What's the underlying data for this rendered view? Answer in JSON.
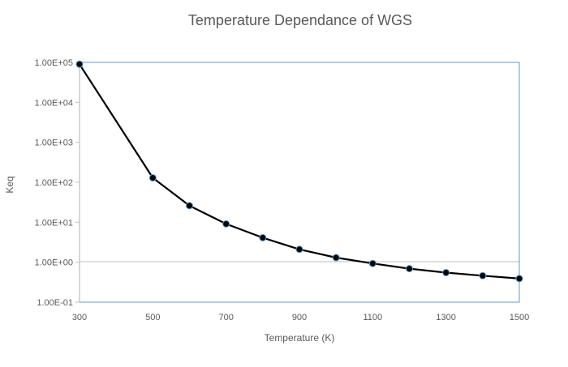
{
  "chart_data": {
    "type": "line",
    "title": "Temperature Dependance of WGS",
    "xlabel": "Temperature (K)",
    "ylabel": "Keq",
    "yscale": "log",
    "xlim": [
      300,
      1500
    ],
    "ylim": [
      0.1,
      100000
    ],
    "x_ticks": [
      "300",
      "500",
      "700",
      "900",
      "1100",
      "1300",
      "1500"
    ],
    "x_tick_values": [
      300,
      500,
      700,
      900,
      1100,
      1300,
      1500
    ],
    "y_ticks": [
      "1.00E+05",
      "1.00E+04",
      "1.00E+03",
      "1.00E+02",
      "1.00E+01",
      "1.00E+00",
      "1.00E-01"
    ],
    "y_tick_values": [
      100000,
      10000,
      1000,
      100,
      10,
      1,
      0.1
    ],
    "grid": "horizontal at 1.00E+00",
    "series": [
      {
        "name": "Keq",
        "color": "#000000",
        "marker_edge": "#5b9bd5",
        "x": [
          300,
          500,
          600,
          700,
          800,
          900,
          1000,
          1100,
          1200,
          1300,
          1400,
          1500
        ],
        "y": [
          90000,
          129,
          26,
          9.1,
          4.1,
          2.1,
          1.3,
          0.93,
          0.69,
          0.55,
          0.46,
          0.39
        ]
      }
    ]
  }
}
